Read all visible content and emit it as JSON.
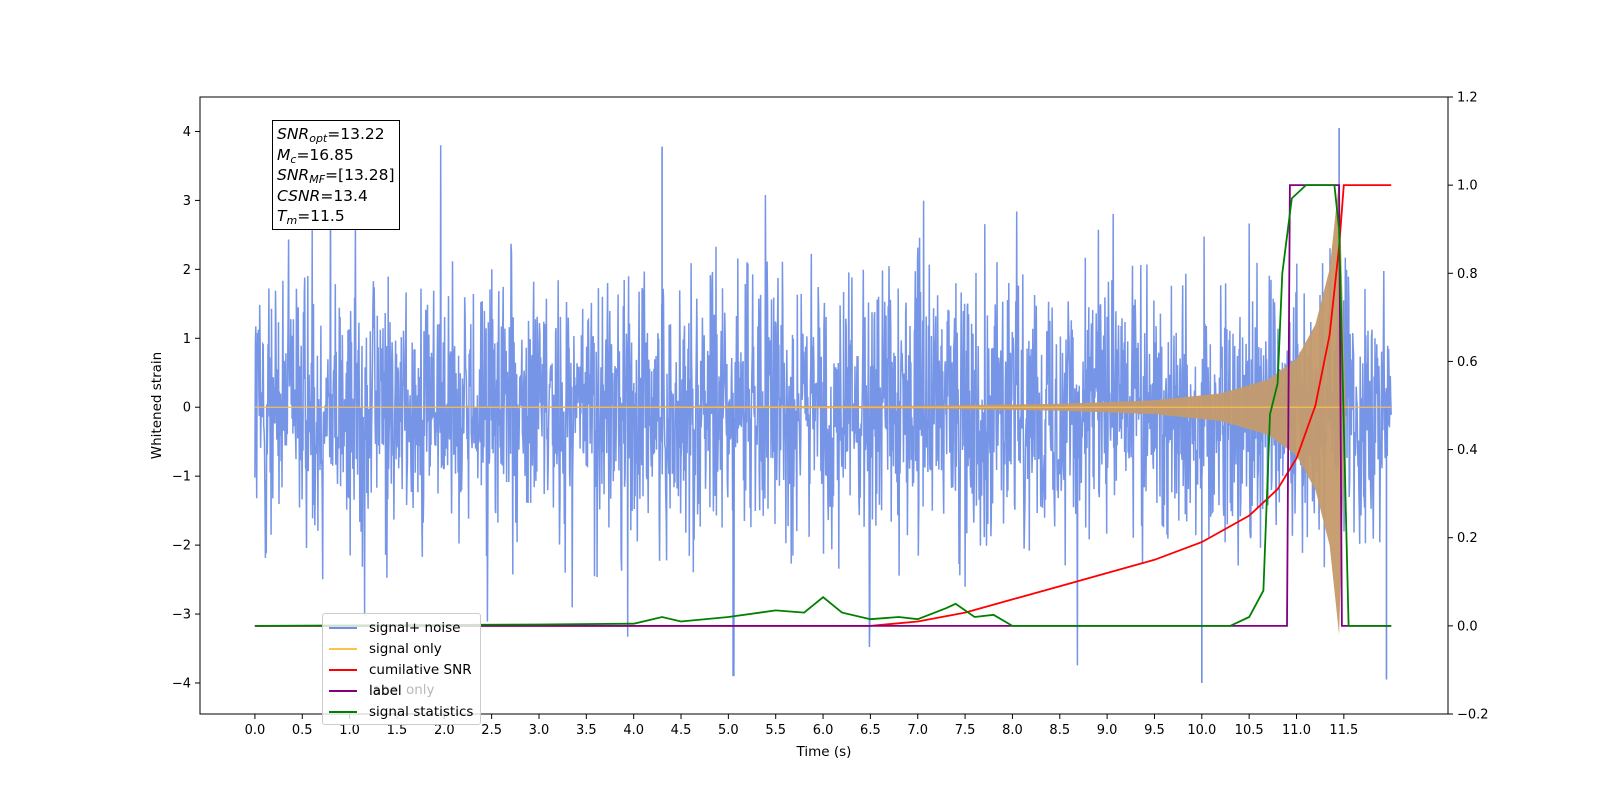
{
  "info_box": {
    "snr_opt": {
      "label": "SNR",
      "sub": "opt",
      "value": "=13.22"
    },
    "mc": {
      "label": "M",
      "sub": "c",
      "value": "=16.85"
    },
    "snr_mf": {
      "label": "SNR",
      "sub": "MF",
      "value": "=[13.28]"
    },
    "csnr": {
      "label": "CSNR",
      "value": "=13.4"
    },
    "tm": {
      "label": "T",
      "sub": "m",
      "value": "=11.5"
    }
  },
  "legend": [
    {
      "label": "signal+ noise",
      "color": "#6f8fe6"
    },
    {
      "label": "signal only",
      "color": "#ffc04d"
    },
    {
      "label": "cumilative SNR",
      "color": "#ff0000"
    },
    {
      "label": "label",
      "color": "#800080"
    },
    {
      "label": "signal statistics",
      "color": "#008000"
    }
  ],
  "hidden_legend_text": "label only",
  "chart_data": {
    "type": "line",
    "xlabel": "Time (s)",
    "ylabel": "Whitened strain",
    "xlim": [
      -0.58,
      12.6
    ],
    "ylim": [
      -4.45,
      4.5
    ],
    "y2lim": [
      -0.2,
      1.2
    ],
    "x_ticks": [
      "0.0",
      "0.5",
      "1.0",
      "1.5",
      "2.0",
      "2.5",
      "3.0",
      "3.5",
      "4.0",
      "4.5",
      "5.0",
      "5.5",
      "6.0",
      "6.5",
      "7.0",
      "7.5",
      "8.0",
      "8.5",
      "9.0",
      "9.5",
      "10.0",
      "10.5",
      "11.0",
      "11.5"
    ],
    "y_ticks": [
      "−4",
      "−3",
      "−2",
      "−1",
      "0",
      "1",
      "2",
      "3",
      "4"
    ],
    "y2_ticks": [
      "−0.2",
      "0.0",
      "0.2",
      "0.4",
      "0.6",
      "0.8",
      "1.0",
      "1.2"
    ],
    "series": [
      {
        "name": "signal+ noise",
        "axis": "left",
        "color": "#6f8fe6",
        "description_values": {
          "x_range": [
            0.0,
            12.0
          ],
          "typical_range": [
            -2.3,
            2.3
          ],
          "peaks": [
            [
              11.45,
              4.05
            ],
            [
              4.3,
              3.78
            ],
            [
              10.0,
              -4.0
            ],
            [
              11.95,
              -3.95
            ],
            [
              5.05,
              -3.9
            ]
          ]
        }
      },
      {
        "name": "signal only",
        "axis": "left",
        "color": "#ffc04d",
        "envelope_points": [
          [
            0.0,
            0.0
          ],
          [
            7.0,
            0.02
          ],
          [
            8.5,
            0.05
          ],
          [
            9.5,
            0.1
          ],
          [
            10.2,
            0.2
          ],
          [
            10.7,
            0.4
          ],
          [
            11.0,
            0.7
          ],
          [
            11.2,
            1.2
          ],
          [
            11.35,
            2.0
          ],
          [
            11.45,
            3.3
          ],
          [
            11.52,
            0.0
          ],
          [
            12.0,
            0.0
          ]
        ]
      },
      {
        "name": "cumilative SNR",
        "axis": "right",
        "color": "#ff0000",
        "x": [
          0.0,
          6.5,
          7.0,
          7.5,
          8.0,
          8.5,
          9.0,
          9.5,
          10.0,
          10.5,
          10.8,
          11.0,
          11.2,
          11.35,
          11.45,
          11.5,
          12.0
        ],
        "values": [
          0.0,
          0.0,
          0.01,
          0.03,
          0.06,
          0.09,
          0.12,
          0.15,
          0.19,
          0.25,
          0.31,
          0.38,
          0.5,
          0.66,
          0.86,
          1.0,
          1.0
        ]
      },
      {
        "name": "label",
        "axis": "right",
        "color": "#800080",
        "x": [
          0.0,
          10.9,
          10.93,
          11.45,
          11.48,
          12.0
        ],
        "values": [
          0.0,
          0.0,
          1.0,
          1.0,
          0.0,
          0.0
        ]
      },
      {
        "name": "signal statistics",
        "axis": "right",
        "color": "#008000",
        "x": [
          0.0,
          3.0,
          4.0,
          4.3,
          4.5,
          5.0,
          5.5,
          5.8,
          6.0,
          6.2,
          6.5,
          6.8,
          7.0,
          7.3,
          7.4,
          7.6,
          7.8,
          8.0,
          10.3,
          10.5,
          10.65,
          10.72,
          10.8,
          10.85,
          10.95,
          11.1,
          11.4,
          11.45,
          11.55,
          12.0
        ],
        "values": [
          0.0,
          0.003,
          0.005,
          0.02,
          0.01,
          0.02,
          0.035,
          0.03,
          0.065,
          0.03,
          0.015,
          0.02,
          0.015,
          0.04,
          0.05,
          0.02,
          0.025,
          0.0,
          0.0,
          0.02,
          0.08,
          0.48,
          0.55,
          0.8,
          0.97,
          1.0,
          1.0,
          0.9,
          0.0,
          0.0
        ]
      }
    ]
  }
}
